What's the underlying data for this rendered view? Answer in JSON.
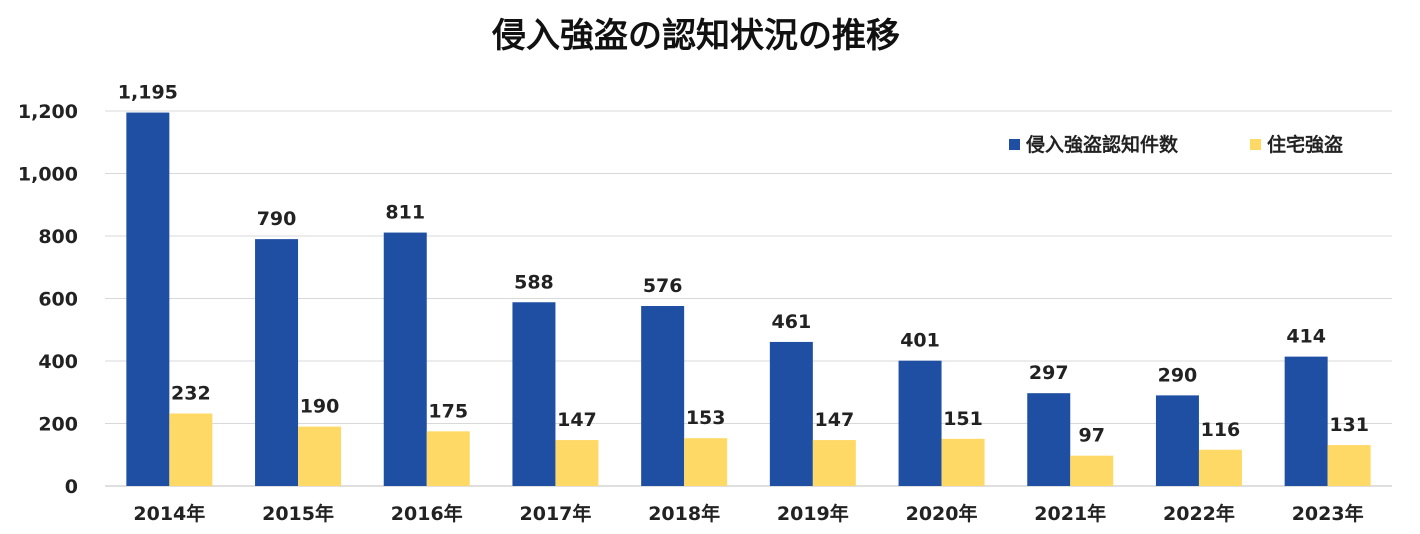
{
  "chart_data": {
    "type": "bar",
    "title": "侵入強盗の認知状況の推移",
    "xlabel": "",
    "ylabel": "",
    "categories": [
      "2014年",
      "2015年",
      "2016年",
      "2017年",
      "2018年",
      "2019年",
      "2020年",
      "2021年",
      "2022年",
      "2023年"
    ],
    "series": [
      {
        "name": "侵入強盗認知件数",
        "color": "#1f4fa3",
        "values": [
          1195,
          790,
          811,
          588,
          576,
          461,
          401,
          297,
          290,
          414
        ],
        "labels": [
          "1,195",
          "790",
          "811",
          "588",
          "576",
          "461",
          "401",
          "297",
          "290",
          "414"
        ]
      },
      {
        "name": "住宅強盗",
        "color": "#ffd966",
        "values": [
          232,
          190,
          175,
          147,
          153,
          147,
          151,
          97,
          116,
          131
        ],
        "labels": [
          "232",
          "190",
          "175",
          "147",
          "153",
          "147",
          "151",
          "97",
          "116",
          "131"
        ]
      }
    ],
    "ylim": [
      0,
      1200
    ],
    "yticks": [
      "0",
      "200",
      "400",
      "600",
      "800",
      "1,000",
      "1,200"
    ],
    "ytick_values": [
      0,
      200,
      400,
      600,
      800,
      1000,
      1200
    ],
    "grid": true,
    "legend_position": "top-right"
  }
}
